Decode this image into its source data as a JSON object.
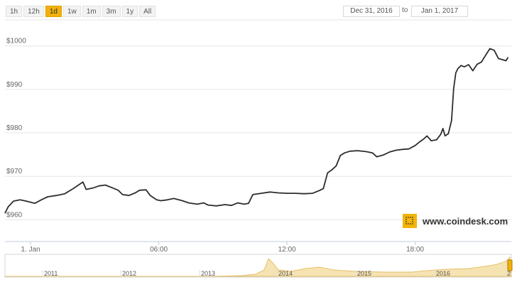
{
  "range_buttons": [
    {
      "label": "1h",
      "active": false
    },
    {
      "label": "12h",
      "active": false
    },
    {
      "label": "1d",
      "active": true
    },
    {
      "label": "1w",
      "active": false
    },
    {
      "label": "1m",
      "active": false
    },
    {
      "label": "3m",
      "active": false
    },
    {
      "label": "1y",
      "active": false
    },
    {
      "label": "All",
      "active": false
    }
  ],
  "date_range": {
    "from": "Dec 31, 2016",
    "to_label": "to",
    "to": "Jan 1, 2017"
  },
  "brand": {
    "text": "www.coindesk.com",
    "color": "#f2b409"
  },
  "chart_data": {
    "type": "line",
    "title": "",
    "xlabel": "",
    "ylabel": "",
    "x_unit": "hours after 00:00, 1 Jan",
    "ylim": [
      955,
      1006
    ],
    "xlim": [
      -1.2,
      22.5
    ],
    "y_ticks": [
      960,
      970,
      980,
      990,
      1000
    ],
    "y_tick_labels": [
      "$960",
      "$970",
      "$980",
      "$990",
      "$1000"
    ],
    "x_ticks": [
      0,
      6,
      12,
      18
    ],
    "x_tick_labels": [
      "1. Jan",
      "06:00",
      "12:00",
      "18:00"
    ],
    "grid": true,
    "line_color": "#2d2d2d",
    "series": [
      {
        "values": [
          [
            -1.2,
            961.5
          ],
          [
            -1.05,
            963.0
          ],
          [
            -0.8,
            964.3
          ],
          [
            -0.5,
            964.6
          ],
          [
            -0.2,
            964.3
          ],
          [
            0.2,
            963.8
          ],
          [
            0.5,
            964.6
          ],
          [
            0.8,
            965.3
          ],
          [
            1.2,
            965.6
          ],
          [
            1.6,
            966.0
          ],
          [
            2.0,
            967.2
          ],
          [
            2.3,
            968.2
          ],
          [
            2.45,
            968.7
          ],
          [
            2.6,
            967.0
          ],
          [
            2.9,
            967.3
          ],
          [
            3.2,
            967.8
          ],
          [
            3.5,
            968.0
          ],
          [
            3.8,
            967.4
          ],
          [
            4.1,
            966.8
          ],
          [
            4.3,
            965.8
          ],
          [
            4.6,
            965.6
          ],
          [
            4.9,
            966.2
          ],
          [
            5.1,
            966.8
          ],
          [
            5.4,
            966.9
          ],
          [
            5.6,
            965.6
          ],
          [
            5.9,
            964.6
          ],
          [
            6.1,
            964.4
          ],
          [
            6.4,
            964.6
          ],
          [
            6.7,
            964.9
          ],
          [
            7.1,
            964.4
          ],
          [
            7.4,
            963.9
          ],
          [
            7.8,
            963.6
          ],
          [
            8.1,
            963.9
          ],
          [
            8.3,
            963.4
          ],
          [
            8.7,
            963.2
          ],
          [
            9.1,
            963.5
          ],
          [
            9.4,
            963.3
          ],
          [
            9.7,
            963.9
          ],
          [
            10.0,
            963.6
          ],
          [
            10.2,
            963.8
          ],
          [
            10.4,
            965.8
          ],
          [
            10.8,
            966.1
          ],
          [
            11.2,
            966.4
          ],
          [
            11.6,
            966.2
          ],
          [
            12.0,
            966.1
          ],
          [
            12.4,
            966.1
          ],
          [
            12.8,
            966.0
          ],
          [
            13.2,
            966.1
          ],
          [
            13.5,
            966.7
          ],
          [
            13.7,
            967.2
          ],
          [
            13.9,
            970.8
          ],
          [
            14.1,
            971.5
          ],
          [
            14.3,
            972.4
          ],
          [
            14.5,
            974.8
          ],
          [
            14.7,
            975.4
          ],
          [
            14.95,
            975.8
          ],
          [
            15.3,
            975.9
          ],
          [
            15.7,
            975.7
          ],
          [
            16.0,
            975.4
          ],
          [
            16.2,
            974.5
          ],
          [
            16.5,
            974.9
          ],
          [
            16.8,
            975.6
          ],
          [
            17.1,
            976.0
          ],
          [
            17.4,
            976.2
          ],
          [
            17.7,
            976.3
          ],
          [
            18.0,
            977.1
          ],
          [
            18.2,
            977.9
          ],
          [
            18.4,
            978.6
          ],
          [
            18.55,
            979.3
          ],
          [
            18.75,
            978.2
          ],
          [
            19.0,
            978.4
          ],
          [
            19.2,
            979.7
          ],
          [
            19.3,
            981.0
          ],
          [
            19.4,
            979.3
          ],
          [
            19.55,
            979.8
          ],
          [
            19.7,
            982.8
          ],
          [
            19.8,
            990.2
          ],
          [
            19.9,
            993.8
          ],
          [
            20.0,
            994.8
          ],
          [
            20.15,
            995.5
          ],
          [
            20.3,
            995.2
          ],
          [
            20.5,
            995.7
          ],
          [
            20.7,
            994.3
          ],
          [
            20.9,
            995.8
          ],
          [
            21.1,
            996.3
          ],
          [
            21.3,
            997.9
          ],
          [
            21.5,
            999.4
          ],
          [
            21.7,
            999.0
          ],
          [
            21.9,
            997.1
          ],
          [
            22.05,
            996.9
          ],
          [
            22.25,
            996.6
          ],
          [
            22.35,
            997.4
          ]
        ]
      }
    ]
  },
  "navigator": {
    "year_labels": [
      "2011",
      "2012",
      "2013",
      "2014",
      "2015",
      "2016",
      "2"
    ],
    "fill_color": "#f6e3b2",
    "line_color": "#e6c06a"
  }
}
